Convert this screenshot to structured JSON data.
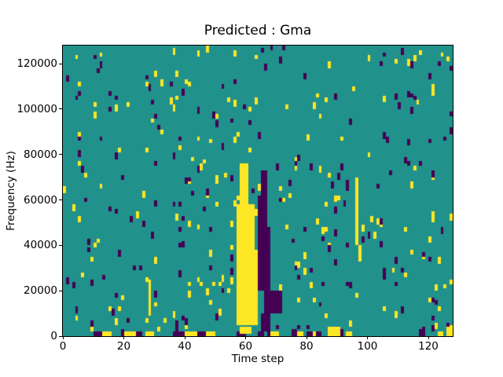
{
  "chart_data": {
    "type": "heatmap",
    "title": "Predicted : Gma",
    "xlabel": "Time step",
    "ylabel": "Frequency (Hz)",
    "x_range": [
      0,
      128
    ],
    "y_range": [
      0,
      128000
    ],
    "x_ticks": [
      0,
      20,
      40,
      60,
      80,
      100,
      120
    ],
    "y_ticks": [
      0,
      20000,
      40000,
      60000,
      80000,
      100000,
      120000
    ],
    "grid": {
      "cols": 128,
      "rows": 128
    },
    "legend": "none",
    "gridlines": false,
    "colors": {
      "0": "#440154",
      "1": "#21918c",
      "2": "#fde725"
    },
    "background_value": 1,
    "features": [
      {
        "value": 2,
        "cols": [
          58,
          61
        ],
        "rows": [
          58,
          76
        ]
      },
      {
        "value": 2,
        "cols": [
          57,
          63
        ],
        "rows": [
          38,
          58
        ]
      },
      {
        "value": 2,
        "cols": [
          57,
          64
        ],
        "rows": [
          5,
          38
        ]
      },
      {
        "value": 0,
        "cols": [
          65,
          67
        ],
        "rows": [
          62,
          73
        ]
      },
      {
        "value": 0,
        "cols": [
          64,
          67
        ],
        "rows": [
          48,
          62
        ]
      },
      {
        "value": 0,
        "cols": [
          64,
          68
        ],
        "rows": [
          20,
          48
        ]
      },
      {
        "value": 0,
        "cols": [
          66,
          72
        ],
        "rows": [
          10,
          20
        ]
      },
      {
        "value": 0,
        "cols": [
          65,
          68
        ],
        "rows": [
          2,
          10
        ]
      },
      {
        "value": 2,
        "cols": [
          96,
          97
        ],
        "rows": [
          40,
          70
        ]
      },
      {
        "value": 2,
        "cols": [
          97,
          98
        ],
        "rows": [
          33,
          40
        ]
      },
      {
        "value": 2,
        "cols": [
          28,
          29
        ],
        "rows": [
          9,
          25
        ]
      },
      {
        "value": 0,
        "cols": [
          10,
          13
        ],
        "rows": [
          0,
          2
        ]
      },
      {
        "value": 2,
        "cols": [
          13,
          16
        ],
        "rows": [
          0,
          2
        ]
      },
      {
        "value": 0,
        "cols": [
          19,
          20
        ],
        "rows": [
          0,
          3
        ]
      },
      {
        "value": 2,
        "cols": [
          20,
          24
        ],
        "rows": [
          0,
          2
        ]
      },
      {
        "value": 0,
        "cols": [
          24,
          26
        ],
        "rows": [
          0,
          2
        ]
      },
      {
        "value": 2,
        "cols": [
          27,
          30
        ],
        "rows": [
          0,
          2
        ]
      },
      {
        "value": 0,
        "cols": [
          37,
          38
        ],
        "rows": [
          0,
          7
        ]
      },
      {
        "value": 0,
        "cols": [
          36,
          40
        ],
        "rows": [
          0,
          2
        ]
      },
      {
        "value": 2,
        "cols": [
          40,
          44
        ],
        "rows": [
          0,
          2
        ]
      },
      {
        "value": 0,
        "cols": [
          44,
          47
        ],
        "rows": [
          0,
          2
        ]
      },
      {
        "value": 2,
        "cols": [
          47,
          50
        ],
        "rows": [
          0,
          2
        ]
      },
      {
        "value": 0,
        "cols": [
          57,
          60
        ],
        "rows": [
          0,
          2
        ]
      },
      {
        "value": 2,
        "cols": [
          58,
          62
        ],
        "rows": [
          1,
          4
        ]
      },
      {
        "value": 0,
        "cols": [
          64,
          66
        ],
        "rows": [
          0,
          2
        ]
      },
      {
        "value": 0,
        "cols": [
          67,
          68
        ],
        "rows": [
          0,
          2
        ]
      },
      {
        "value": 2,
        "cols": [
          68,
          71
        ],
        "rows": [
          0,
          2
        ]
      },
      {
        "value": 0,
        "cols": [
          75,
          77
        ],
        "rows": [
          0,
          3
        ]
      },
      {
        "value": 2,
        "cols": [
          77,
          79
        ],
        "rows": [
          0,
          2
        ]
      },
      {
        "value": 0,
        "cols": [
          80,
          82
        ],
        "rows": [
          0,
          2
        ]
      },
      {
        "value": 2,
        "cols": [
          82,
          83
        ],
        "rows": [
          0,
          2
        ]
      },
      {
        "value": 0,
        "cols": [
          83,
          85
        ],
        "rows": [
          0,
          2
        ]
      },
      {
        "value": 2,
        "cols": [
          87,
          91
        ],
        "rows": [
          0,
          4
        ]
      },
      {
        "value": 0,
        "cols": [
          91,
          92
        ],
        "rows": [
          0,
          3
        ]
      },
      {
        "value": 2,
        "cols": [
          93,
          95
        ],
        "rows": [
          0,
          2
        ]
      },
      {
        "value": 0,
        "cols": [
          117,
          119
        ],
        "rows": [
          0,
          3
        ]
      },
      {
        "value": 0,
        "cols": [
          121,
          122
        ],
        "rows": [
          2,
          5
        ]
      },
      {
        "value": 2,
        "cols": [
          123,
          125
        ],
        "rows": [
          0,
          2
        ]
      },
      {
        "value": 2,
        "cols": [
          126,
          128
        ],
        "rows": [
          0,
          5
        ]
      },
      {
        "value": 0,
        "cols": [
          126,
          127
        ],
        "rows": [
          4,
          6
        ]
      }
    ],
    "noise": {
      "seed": 12,
      "marks": [
        {
          "value": 2,
          "count": 130,
          "col_range": [
            0,
            128
          ],
          "row_range": [
            2,
            92
          ],
          "run_rows": [
            2,
            3
          ]
        },
        {
          "value": 0,
          "count": 130,
          "col_range": [
            0,
            128
          ],
          "row_range": [
            2,
            92
          ],
          "run_rows": [
            2,
            3
          ]
        },
        {
          "value": 2,
          "count": 45,
          "col_range": [
            0,
            128
          ],
          "row_range": [
            92,
            128
          ],
          "run_rows": [
            2,
            3
          ]
        },
        {
          "value": 0,
          "count": 45,
          "col_range": [
            0,
            128
          ],
          "row_range": [
            92,
            128
          ],
          "run_rows": [
            2,
            3
          ]
        }
      ]
    }
  }
}
